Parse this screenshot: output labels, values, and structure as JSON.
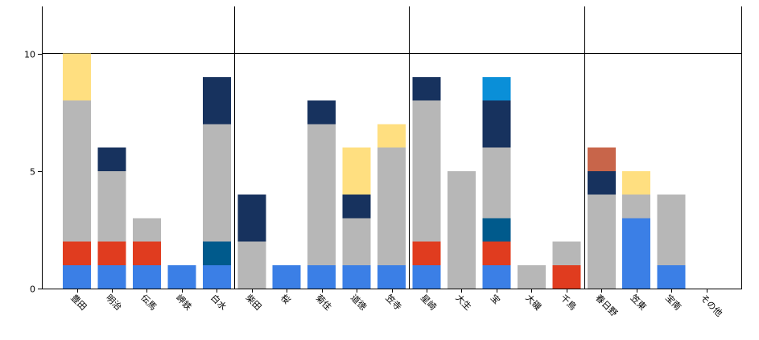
{
  "chart_data": {
    "type": "bar",
    "stacked": true,
    "title": "",
    "xlabel": "",
    "ylabel": "",
    "ylim": [
      0,
      12
    ],
    "y_ticks": [
      0,
      5,
      10
    ],
    "grid": {
      "horizontal_lines_at": [
        10
      ],
      "vertical_lines_after_categories": [
        4,
        9,
        14
      ],
      "right_border": true
    },
    "legend": "none",
    "categories": [
      "豊田",
      "明治",
      "伝馬",
      "岬鉄",
      "白水",
      "柴田",
      "桜",
      "菊住",
      "道徳",
      "笠寺",
      "星崎",
      "大生",
      "宝",
      "大磯",
      "千鳥",
      "春日野",
      "笠東",
      "宝南",
      "その他"
    ],
    "series": [
      {
        "color": "#3b7fe6",
        "values": [
          1,
          1,
          1,
          1,
          1,
          0,
          1,
          1,
          1,
          1,
          1,
          0,
          1,
          0,
          0,
          0,
          3,
          1,
          0
        ]
      },
      {
        "color": "#e03c1f",
        "values": [
          1,
          1,
          1,
          0,
          0,
          0,
          0,
          0,
          0,
          0,
          1,
          0,
          1,
          0,
          1,
          0,
          0,
          0,
          0
        ]
      },
      {
        "color": "#005a8c",
        "values": [
          0,
          0,
          0,
          0,
          1,
          0,
          0,
          0,
          0,
          0,
          0,
          0,
          1,
          0,
          0,
          0,
          0,
          0,
          0
        ]
      },
      {
        "color": "#b7b7b7",
        "values": [
          6,
          3,
          1,
          0,
          5,
          2,
          0,
          6,
          2,
          5,
          6,
          5,
          3,
          1,
          1,
          4,
          1,
          3,
          0
        ]
      },
      {
        "color": "#17325e",
        "values": [
          0,
          1,
          0,
          0,
          2,
          2,
          0,
          1,
          1,
          0,
          1,
          0,
          2,
          0,
          0,
          1,
          0,
          0,
          0
        ]
      },
      {
        "color": "#ffdf80",
        "values": [
          2,
          0,
          0,
          0,
          0,
          0,
          0,
          0,
          2,
          1,
          0,
          0,
          0,
          0,
          0,
          0,
          1,
          0,
          0
        ]
      },
      {
        "color": "#c8654a",
        "values": [
          0,
          0,
          0,
          0,
          0,
          0,
          0,
          0,
          0,
          0,
          0,
          0,
          0,
          0,
          0,
          1,
          0,
          0,
          0
        ]
      },
      {
        "color": "#0a8fd8",
        "values": [
          0,
          0,
          0,
          0,
          0,
          0,
          0,
          0,
          0,
          0,
          0,
          0,
          1,
          0,
          0,
          0,
          0,
          0,
          0
        ]
      }
    ]
  }
}
